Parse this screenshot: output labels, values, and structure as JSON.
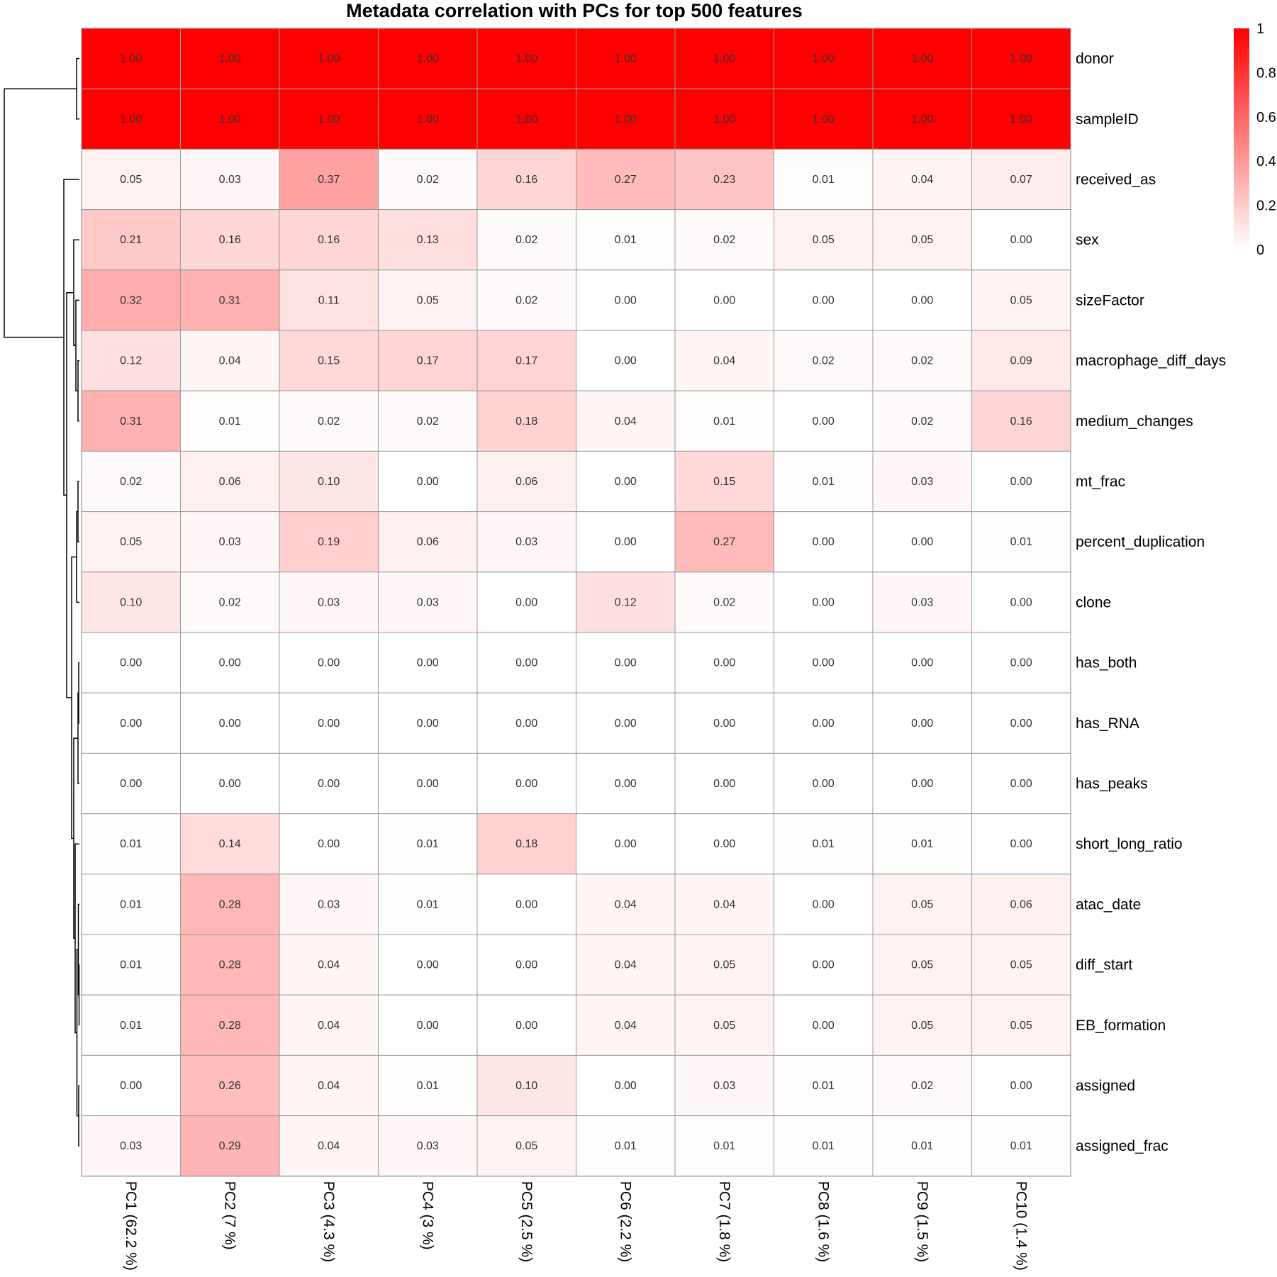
{
  "chart_data": {
    "type": "heatmap",
    "title": "Metadata correlation with PCs for top 500 features",
    "columns": [
      "PC1 (62.2 %)",
      "PC2 (7 %)",
      "PC3 (4.3 %)",
      "PC4 (3 %)",
      "PC5 (2.5 %)",
      "PC6 (2.2 %)",
      "PC7 (1.8 %)",
      "PC8 (1.6 %)",
      "PC9 (1.5 %)",
      "PC10 (1.4 %)"
    ],
    "rows": [
      "donor",
      "sampleID",
      "received_as",
      "sex",
      "sizeFactor",
      "macrophage_diff_days",
      "medium_changes",
      "mt_frac",
      "percent_duplication",
      "clone",
      "has_both",
      "has_RNA",
      "has_peaks",
      "short_long_ratio",
      "atac_date",
      "diff_start",
      "EB_formation",
      "assigned",
      "assigned_frac"
    ],
    "values": [
      [
        1.0,
        1.0,
        1.0,
        1.0,
        1.0,
        1.0,
        1.0,
        1.0,
        1.0,
        1.0
      ],
      [
        1.0,
        1.0,
        1.0,
        1.0,
        1.0,
        1.0,
        1.0,
        1.0,
        1.0,
        1.0
      ],
      [
        0.05,
        0.03,
        0.37,
        0.02,
        0.16,
        0.27,
        0.23,
        0.01,
        0.04,
        0.07
      ],
      [
        0.21,
        0.16,
        0.16,
        0.13,
        0.02,
        0.01,
        0.02,
        0.05,
        0.05,
        0.0
      ],
      [
        0.32,
        0.31,
        0.11,
        0.05,
        0.02,
        0.0,
        0.0,
        0.0,
        0.0,
        0.05
      ],
      [
        0.12,
        0.04,
        0.15,
        0.17,
        0.17,
        0.0,
        0.04,
        0.02,
        0.02,
        0.09
      ],
      [
        0.31,
        0.01,
        0.02,
        0.02,
        0.18,
        0.04,
        0.01,
        0.0,
        0.02,
        0.16
      ],
      [
        0.02,
        0.06,
        0.1,
        0.0,
        0.06,
        0.0,
        0.15,
        0.01,
        0.03,
        0.0
      ],
      [
        0.05,
        0.03,
        0.19,
        0.06,
        0.03,
        0.0,
        0.27,
        0.0,
        0.0,
        0.01
      ],
      [
        0.1,
        0.02,
        0.03,
        0.03,
        0.0,
        0.12,
        0.02,
        0.0,
        0.03,
        0.0
      ],
      [
        0.0,
        0.0,
        0.0,
        0.0,
        0.0,
        0.0,
        0.0,
        0.0,
        0.0,
        0.0
      ],
      [
        0.0,
        0.0,
        0.0,
        0.0,
        0.0,
        0.0,
        0.0,
        0.0,
        0.0,
        0.0
      ],
      [
        0.0,
        0.0,
        0.0,
        0.0,
        0.0,
        0.0,
        0.0,
        0.0,
        0.0,
        0.0
      ],
      [
        0.01,
        0.14,
        0.0,
        0.01,
        0.18,
        0.0,
        0.0,
        0.01,
        0.01,
        0.0
      ],
      [
        0.01,
        0.28,
        0.03,
        0.01,
        0.0,
        0.04,
        0.04,
        0.0,
        0.05,
        0.06
      ],
      [
        0.01,
        0.28,
        0.04,
        0.0,
        0.0,
        0.04,
        0.05,
        0.0,
        0.05,
        0.05
      ],
      [
        0.01,
        0.28,
        0.04,
        0.0,
        0.0,
        0.04,
        0.05,
        0.0,
        0.05,
        0.05
      ],
      [
        0.0,
        0.26,
        0.04,
        0.01,
        0.1,
        0.0,
        0.03,
        0.01,
        0.02,
        0.0
      ],
      [
        0.03,
        0.29,
        0.04,
        0.03,
        0.05,
        0.01,
        0.01,
        0.01,
        0.01,
        0.01
      ]
    ],
    "color_scale": {
      "min": 0,
      "max": 1,
      "low_color": "#ffffff",
      "high_color": "#ff0000"
    },
    "legend": {
      "ticks": [
        1,
        0.8,
        0.6,
        0.4,
        0.2,
        0
      ],
      "placement": "top-right"
    },
    "row_dendrogram": true,
    "legend_tick_labels": [
      "1",
      "0.8",
      "0.6",
      "0.4",
      "0.2",
      "0"
    ]
  }
}
